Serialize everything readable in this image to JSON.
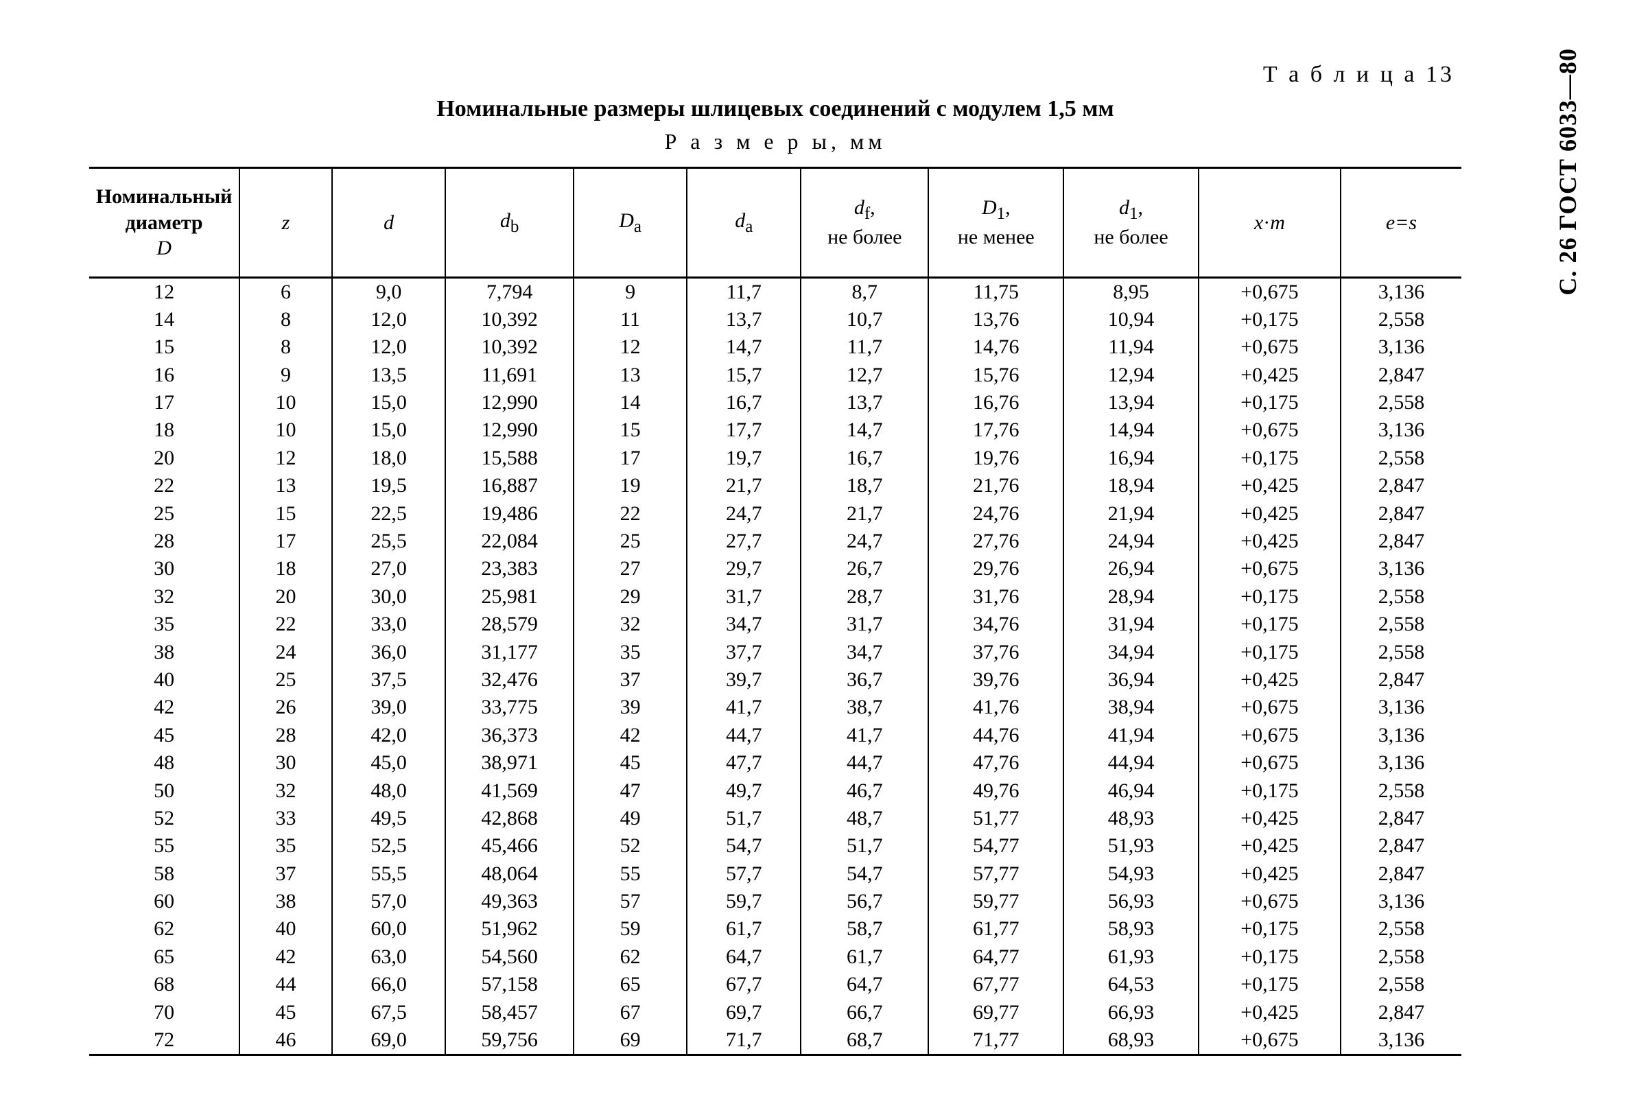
{
  "side_label": "С. 26 ГОСТ 6033—80",
  "table_number": "Т а б л и ц а   13",
  "title": "Номинальные размеры шлицевых соединений с модулем 1,5 мм",
  "subtitle": "Р а з м е р ы,   мм",
  "headers": {
    "c0a": "Номинальный",
    "c0b": "диаметр",
    "c0c": "D",
    "c1": "z",
    "c2": "d",
    "c3": "d",
    "c3sub": "b",
    "c4": "D",
    "c4sub": "a",
    "c5": "d",
    "c5sub": "a",
    "c6": "d",
    "c6sub": "f",
    "c6b": "не более",
    "c7": "D",
    "c7sub": "1",
    "c7b": "не менее",
    "c8": "d",
    "c8sub": "1",
    "c8b": "не более",
    "c9a": "x",
    "c9b": "m",
    "c10": "e=s"
  },
  "rows": [
    [
      "12",
      "6",
      "9,0",
      "7,794",
      "9",
      "11,7",
      "8,7",
      "11,75",
      "8,95",
      "+0,675",
      "3,136"
    ],
    [
      "14",
      "8",
      "12,0",
      "10,392",
      "11",
      "13,7",
      "10,7",
      "13,76",
      "10,94",
      "+0,175",
      "2,558"
    ],
    [
      "15",
      "8",
      "12,0",
      "10,392",
      "12",
      "14,7",
      "11,7",
      "14,76",
      "11,94",
      "+0,675",
      "3,136"
    ],
    [
      "16",
      "9",
      "13,5",
      "11,691",
      "13",
      "15,7",
      "12,7",
      "15,76",
      "12,94",
      "+0,425",
      "2,847"
    ],
    [
      "17",
      "10",
      "15,0",
      "12,990",
      "14",
      "16,7",
      "13,7",
      "16,76",
      "13,94",
      "+0,175",
      "2,558"
    ],
    [
      "18",
      "10",
      "15,0",
      "12,990",
      "15",
      "17,7",
      "14,7",
      "17,76",
      "14,94",
      "+0,675",
      "3,136"
    ],
    [
      "20",
      "12",
      "18,0",
      "15,588",
      "17",
      "19,7",
      "16,7",
      "19,76",
      "16,94",
      "+0,175",
      "2,558"
    ],
    [
      "22",
      "13",
      "19,5",
      "16,887",
      "19",
      "21,7",
      "18,7",
      "21,76",
      "18,94",
      "+0,425",
      "2,847"
    ],
    [
      "25",
      "15",
      "22,5",
      "19,486",
      "22",
      "24,7",
      "21,7",
      "24,76",
      "21,94",
      "+0,425",
      "2,847"
    ],
    [
      "28",
      "17",
      "25,5",
      "22,084",
      "25",
      "27,7",
      "24,7",
      "27,76",
      "24,94",
      "+0,425",
      "2,847"
    ],
    [
      "30",
      "18",
      "27,0",
      "23,383",
      "27",
      "29,7",
      "26,7",
      "29,76",
      "26,94",
      "+0,675",
      "3,136"
    ],
    [
      "32",
      "20",
      "30,0",
      "25,981",
      "29",
      "31,7",
      "28,7",
      "31,76",
      "28,94",
      "+0,175",
      "2,558"
    ],
    [
      "35",
      "22",
      "33,0",
      "28,579",
      "32",
      "34,7",
      "31,7",
      "34,76",
      "31,94",
      "+0,175",
      "2,558"
    ],
    [
      "38",
      "24",
      "36,0",
      "31,177",
      "35",
      "37,7",
      "34,7",
      "37,76",
      "34,94",
      "+0,175",
      "2,558"
    ],
    [
      "40",
      "25",
      "37,5",
      "32,476",
      "37",
      "39,7",
      "36,7",
      "39,76",
      "36,94",
      "+0,425",
      "2,847"
    ],
    [
      "42",
      "26",
      "39,0",
      "33,775",
      "39",
      "41,7",
      "38,7",
      "41,76",
      "38,94",
      "+0,675",
      "3,136"
    ],
    [
      "45",
      "28",
      "42,0",
      "36,373",
      "42",
      "44,7",
      "41,7",
      "44,76",
      "41,94",
      "+0,675",
      "3,136"
    ],
    [
      "48",
      "30",
      "45,0",
      "38,971",
      "45",
      "47,7",
      "44,7",
      "47,76",
      "44,94",
      "+0,675",
      "3,136"
    ],
    [
      "50",
      "32",
      "48,0",
      "41,569",
      "47",
      "49,7",
      "46,7",
      "49,76",
      "46,94",
      "+0,175",
      "2,558"
    ],
    [
      "52",
      "33",
      "49,5",
      "42,868",
      "49",
      "51,7",
      "48,7",
      "51,77",
      "48,93",
      "+0,425",
      "2,847"
    ],
    [
      "55",
      "35",
      "52,5",
      "45,466",
      "52",
      "54,7",
      "51,7",
      "54,77",
      "51,93",
      "+0,425",
      "2,847"
    ],
    [
      "58",
      "37",
      "55,5",
      "48,064",
      "55",
      "57,7",
      "54,7",
      "57,77",
      "54,93",
      "+0,425",
      "2,847"
    ],
    [
      "60",
      "38",
      "57,0",
      "49,363",
      "57",
      "59,7",
      "56,7",
      "59,77",
      "56,93",
      "+0,675",
      "3,136"
    ],
    [
      "62",
      "40",
      "60,0",
      "51,962",
      "59",
      "61,7",
      "58,7",
      "61,77",
      "58,93",
      "+0,175",
      "2,558"
    ],
    [
      "65",
      "42",
      "63,0",
      "54,560",
      "62",
      "64,7",
      "61,7",
      "64,77",
      "61,93",
      "+0,175",
      "2,558"
    ],
    [
      "68",
      "44",
      "66,0",
      "57,158",
      "65",
      "67,7",
      "64,7",
      "67,77",
      "64,53",
      "+0,175",
      "2,558"
    ],
    [
      "70",
      "45",
      "67,5",
      "58,457",
      "67",
      "69,7",
      "66,7",
      "69,77",
      "66,93",
      "+0,425",
      "2,847"
    ],
    [
      "72",
      "46",
      "69,0",
      "59,756",
      "69",
      "71,7",
      "68,7",
      "71,77",
      "68,93",
      "+0,675",
      "3,136"
    ]
  ]
}
